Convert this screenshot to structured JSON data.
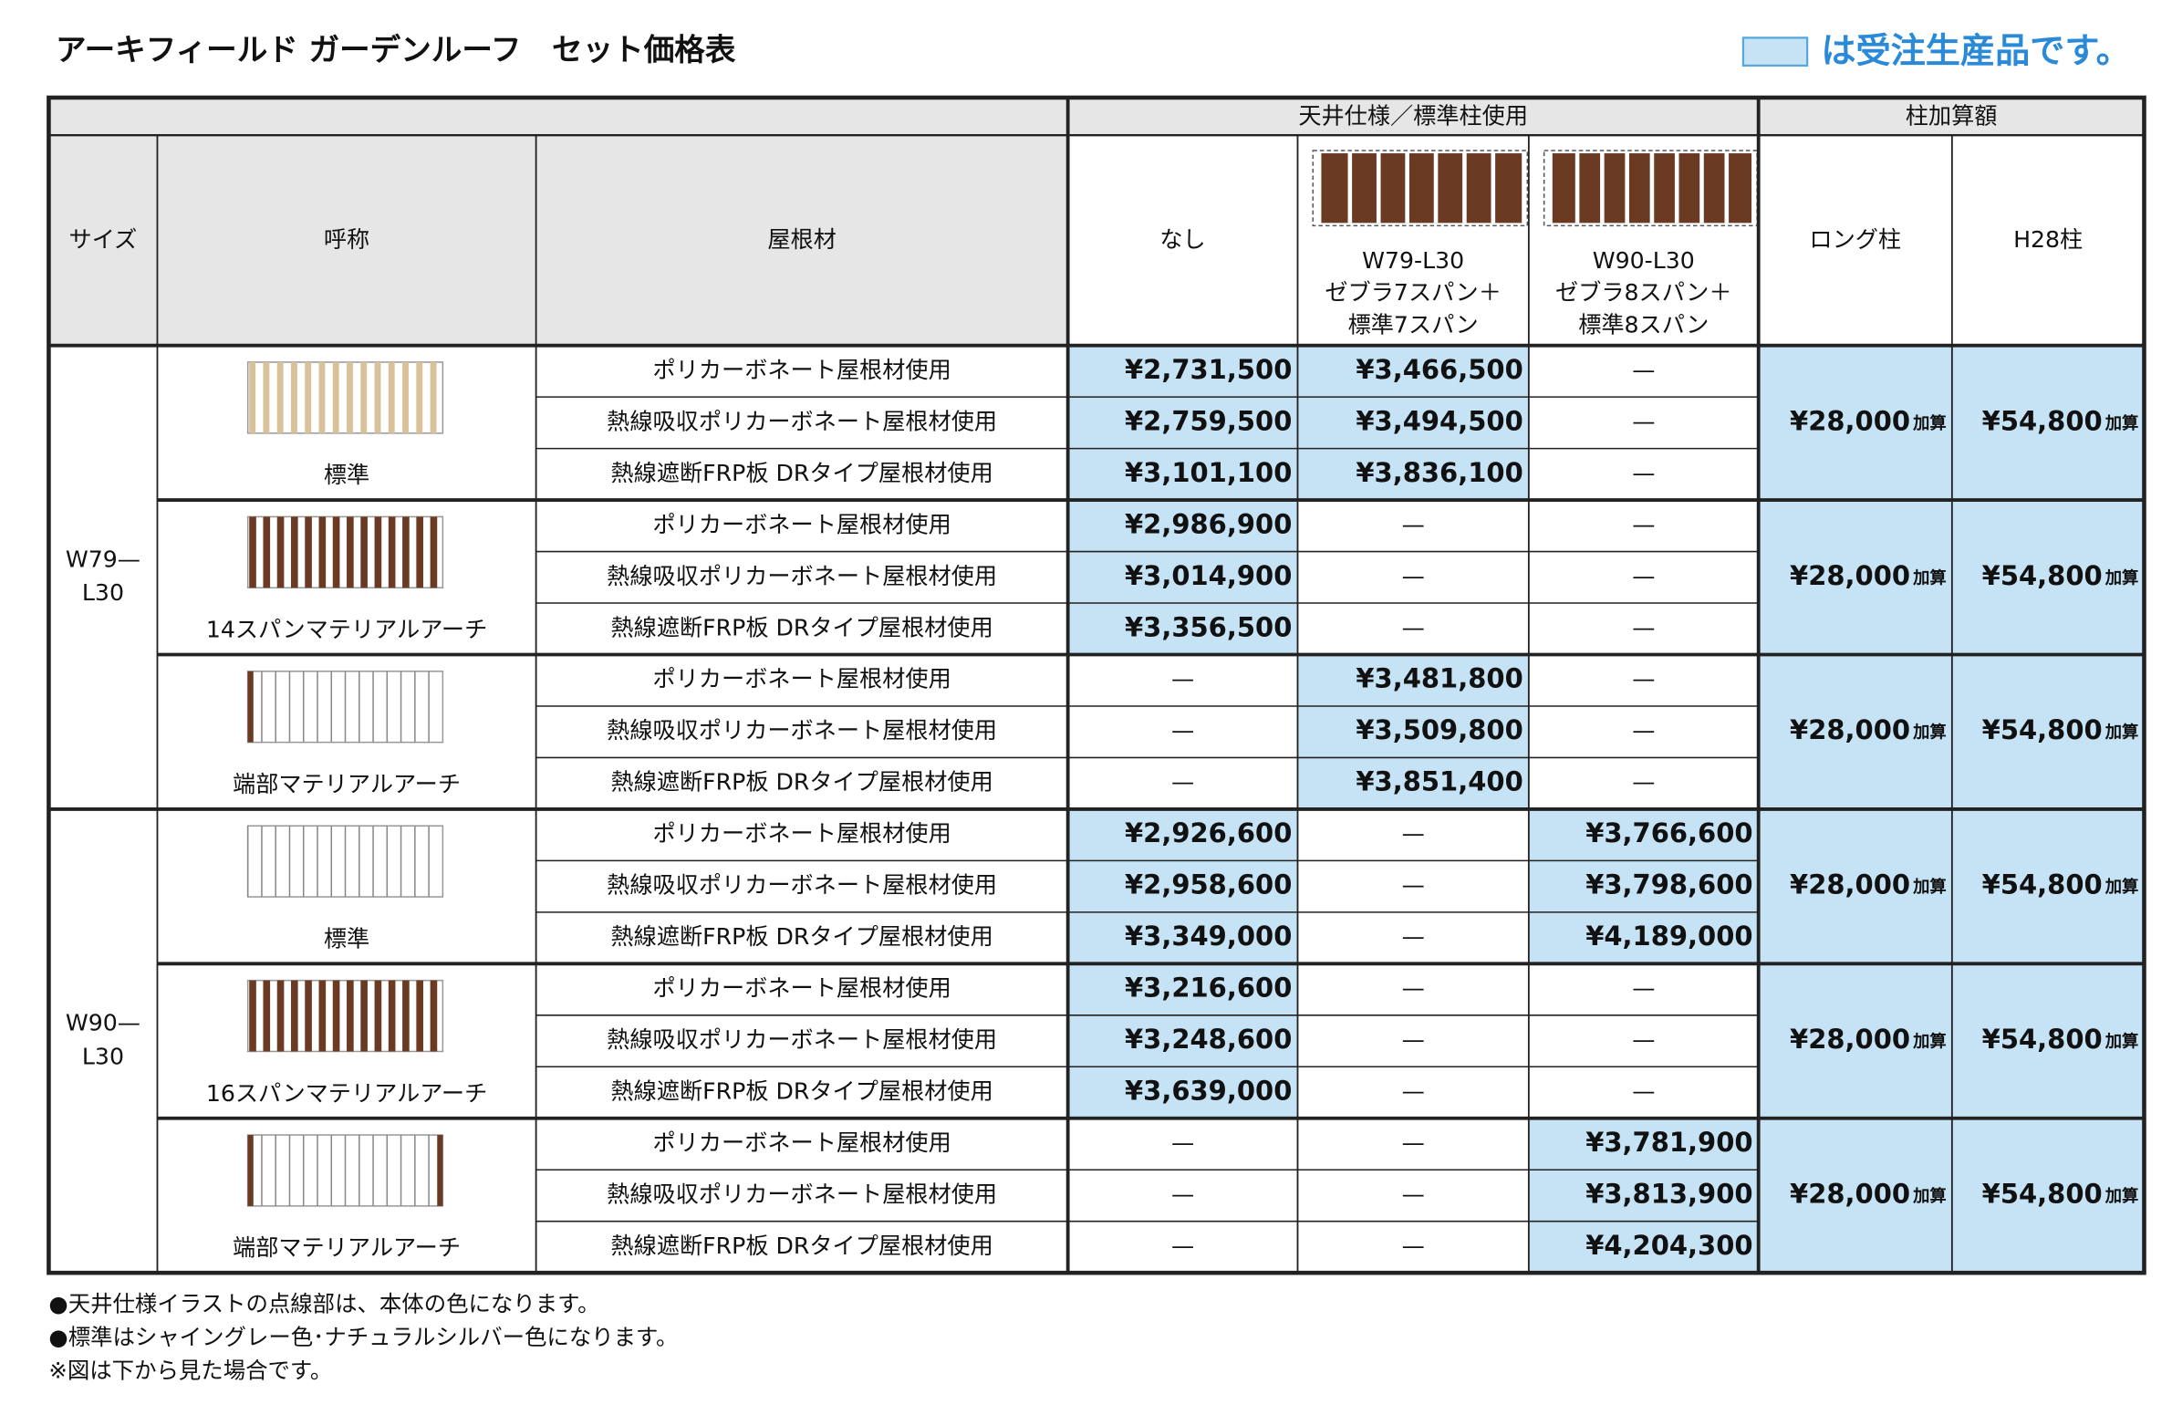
{
  "title": "アーキフィールド ガーデンルーフ　セット価格表",
  "legend": "は受注生産品です。",
  "header": {
    "ceiling_group": "天井仕様／標準柱使用",
    "post_group": "柱加算額",
    "size": "サイズ",
    "name": "呼称",
    "roof": "屋根材",
    "none": "なし",
    "w79": [
      "W79-L30",
      "ゼブラ7スパン＋",
      "標準7スパン"
    ],
    "w90": [
      "W90-L30",
      "ゼブラ8スパン＋",
      "標準8スパン"
    ],
    "long": "ロング柱",
    "h28": "H28柱"
  },
  "sizes": [
    {
      "label": [
        "W79—",
        "L30"
      ],
      "groups": [
        {
          "name": "標準",
          "long": "¥28,000",
          "long_suffix": "加算",
          "h28": "¥54,800",
          "h28_suffix": "加算",
          "rows": [
            {
              "roof": "ポリカーボネート屋根材使用",
              "prices": [
                "¥2,731,500",
                "¥3,466,500",
                "—"
              ],
              "made_to_order": [
                true,
                true,
                false
              ]
            },
            {
              "roof": "熱線吸収ポリカーボネート屋根材使用",
              "prices": [
                "¥2,759,500",
                "¥3,494,500",
                "—"
              ],
              "made_to_order": [
                true,
                true,
                false
              ]
            },
            {
              "roof": "熱線遮断FRP板 DRタイプ屋根材使用",
              "prices": [
                "¥3,101,100",
                "¥3,836,100",
                "—"
              ],
              "made_to_order": [
                true,
                true,
                false
              ]
            }
          ]
        },
        {
          "name": "14スパンマテリアルアーチ",
          "long": "¥28,000",
          "long_suffix": "加算",
          "h28": "¥54,800",
          "h28_suffix": "加算",
          "rows": [
            {
              "roof": "ポリカーボネート屋根材使用",
              "prices": [
                "¥2,986,900",
                "—",
                "—"
              ],
              "made_to_order": [
                true,
                false,
                false
              ]
            },
            {
              "roof": "熱線吸収ポリカーボネート屋根材使用",
              "prices": [
                "¥3,014,900",
                "—",
                "—"
              ],
              "made_to_order": [
                true,
                false,
                false
              ]
            },
            {
              "roof": "熱線遮断FRP板 DRタイプ屋根材使用",
              "prices": [
                "¥3,356,500",
                "—",
                "—"
              ],
              "made_to_order": [
                true,
                false,
                false
              ]
            }
          ]
        },
        {
          "name": "端部マテリアルアーチ",
          "long": "¥28,000",
          "long_suffix": "加算",
          "h28": "¥54,800",
          "h28_suffix": "加算",
          "rows": [
            {
              "roof": "ポリカーボネート屋根材使用",
              "prices": [
                "—",
                "¥3,481,800",
                "—"
              ],
              "made_to_order": [
                false,
                true,
                false
              ]
            },
            {
              "roof": "熱線吸収ポリカーボネート屋根材使用",
              "prices": [
                "—",
                "¥3,509,800",
                "—"
              ],
              "made_to_order": [
                false,
                true,
                false
              ]
            },
            {
              "roof": "熱線遮断FRP板 DRタイプ屋根材使用",
              "prices": [
                "—",
                "¥3,851,400",
                "—"
              ],
              "made_to_order": [
                false,
                true,
                false
              ]
            }
          ]
        }
      ]
    },
    {
      "label": [
        "W90—",
        "L30"
      ],
      "groups": [
        {
          "name": "標準",
          "long": "¥28,000",
          "long_suffix": "加算",
          "h28": "¥54,800",
          "h28_suffix": "加算",
          "rows": [
            {
              "roof": "ポリカーボネート屋根材使用",
              "prices": [
                "¥2,926,600",
                "—",
                "¥3,766,600"
              ],
              "made_to_order": [
                true,
                false,
                true
              ]
            },
            {
              "roof": "熱線吸収ポリカーボネート屋根材使用",
              "prices": [
                "¥2,958,600",
                "—",
                "¥3,798,600"
              ],
              "made_to_order": [
                true,
                false,
                true
              ]
            },
            {
              "roof": "熱線遮断FRP板 DRタイプ屋根材使用",
              "prices": [
                "¥3,349,000",
                "—",
                "¥4,189,000"
              ],
              "made_to_order": [
                true,
                false,
                true
              ]
            }
          ]
        },
        {
          "name": "16スパンマテリアルアーチ",
          "long": "¥28,000",
          "long_suffix": "加算",
          "h28": "¥54,800",
          "h28_suffix": "加算",
          "rows": [
            {
              "roof": "ポリカーボネート屋根材使用",
              "prices": [
                "¥3,216,600",
                "—",
                "—"
              ],
              "made_to_order": [
                true,
                false,
                false
              ]
            },
            {
              "roof": "熱線吸収ポリカーボネート屋根材使用",
              "prices": [
                "¥3,248,600",
                "—",
                "—"
              ],
              "made_to_order": [
                true,
                false,
                false
              ]
            },
            {
              "roof": "熱線遮断FRP板 DRタイプ屋根材使用",
              "prices": [
                "¥3,639,000",
                "—",
                "—"
              ],
              "made_to_order": [
                true,
                false,
                false
              ]
            }
          ]
        },
        {
          "name": "端部マテリアルアーチ",
          "long": "¥28,000",
          "long_suffix": "加算",
          "h28": "¥54,800",
          "h28_suffix": "加算",
          "rows": [
            {
              "roof": "ポリカーボネート屋根材使用",
              "prices": [
                "—",
                "—",
                "¥3,781,900"
              ],
              "made_to_order": [
                false,
                false,
                true
              ]
            },
            {
              "roof": "熱線吸収ポリカーボネート屋根材使用",
              "prices": [
                "—",
                "—",
                "¥3,813,900"
              ],
              "made_to_order": [
                false,
                false,
                true
              ]
            },
            {
              "roof": "熱線遮断FRP板 DRタイプ屋根材使用",
              "prices": [
                "—",
                "—",
                "¥4,204,300"
              ],
              "made_to_order": [
                false,
                false,
                true
              ]
            }
          ]
        }
      ]
    }
  ],
  "notes": [
    "●天井仕様イラストの点線部は、本体の色になります。",
    "●標準はシャイングレー色･ナチュラルシルバー色になります。",
    "※図は下から見た場合です。"
  ]
}
